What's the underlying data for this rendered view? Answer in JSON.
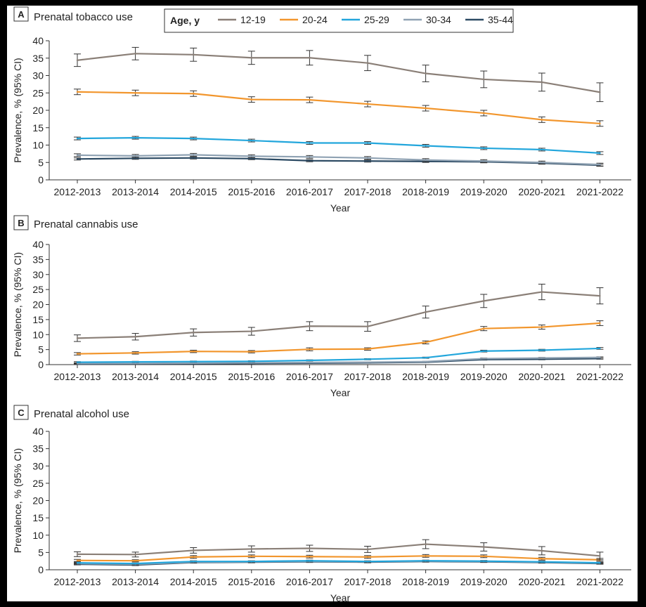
{
  "legend": {
    "title": "Age, y",
    "items": [
      {
        "label": "12-19",
        "color": "#8a7f77"
      },
      {
        "label": "20-24",
        "color": "#f2962d"
      },
      {
        "label": "25-29",
        "color": "#22a6dc"
      },
      {
        "label": "30-34",
        "color": "#8fa2b3"
      },
      {
        "label": "35-44",
        "color": "#2c4a63"
      }
    ]
  },
  "chart_data": [
    {
      "type": "line",
      "panel_letter": "A",
      "title": "Prenatal tobacco use",
      "xlabel": "Year",
      "ylabel": "Prevalence, % (95% CI)",
      "ylim": [
        0,
        40
      ],
      "yticks": [
        0,
        5,
        10,
        15,
        20,
        25,
        30,
        35,
        40
      ],
      "categories": [
        "2012-2013",
        "2013-2014",
        "2014-2015",
        "2015-2016",
        "2016-2017",
        "2017-2018",
        "2018-2019",
        "2019-2020",
        "2020-2021",
        "2021-2022"
      ],
      "grid": false,
      "error_bars": true,
      "series": [
        {
          "name": "12-19",
          "values": [
            34.4,
            36.3,
            36.0,
            35.1,
            35.1,
            33.6,
            30.6,
            28.9,
            28.1,
            25.2
          ],
          "lower": [
            32.6,
            34.5,
            34.1,
            33.2,
            33.0,
            31.4,
            28.2,
            26.5,
            25.5,
            22.5
          ],
          "upper": [
            36.2,
            38.1,
            37.9,
            37.0,
            37.2,
            35.8,
            33.0,
            31.3,
            30.7,
            27.9
          ]
        },
        {
          "name": "20-24",
          "values": [
            25.3,
            25.0,
            24.8,
            23.1,
            23.0,
            21.8,
            20.6,
            19.2,
            17.3,
            16.2
          ],
          "lower": [
            24.5,
            24.2,
            24.0,
            22.3,
            22.2,
            21.0,
            19.8,
            18.4,
            16.5,
            15.4
          ],
          "upper": [
            26.1,
            25.8,
            25.6,
            23.9,
            23.8,
            22.6,
            21.4,
            20.0,
            18.1,
            17.0
          ]
        },
        {
          "name": "25-29",
          "values": [
            11.9,
            12.1,
            11.9,
            11.3,
            10.6,
            10.6,
            9.8,
            9.1,
            8.7,
            7.7
          ],
          "lower": [
            11.5,
            11.7,
            11.5,
            10.9,
            10.2,
            10.2,
            9.4,
            8.7,
            8.3,
            7.3
          ],
          "upper": [
            12.3,
            12.5,
            12.3,
            11.7,
            11.0,
            11.0,
            10.2,
            9.5,
            9.1,
            8.1
          ]
        },
        {
          "name": "30-34",
          "values": [
            7.1,
            6.9,
            7.2,
            6.8,
            6.6,
            6.3,
            5.7,
            5.4,
            5.0,
            4.4
          ],
          "lower": [
            6.7,
            6.5,
            6.8,
            6.4,
            6.2,
            5.9,
            5.3,
            5.0,
            4.6,
            4.0
          ],
          "upper": [
            7.5,
            7.3,
            7.6,
            7.2,
            7.0,
            6.7,
            6.1,
            5.8,
            5.4,
            4.8
          ]
        },
        {
          "name": "35-44",
          "values": [
            6.0,
            6.2,
            6.3,
            6.1,
            5.5,
            5.4,
            5.3,
            5.2,
            4.8,
            4.2
          ],
          "lower": [
            5.7,
            5.9,
            6.0,
            5.8,
            5.2,
            5.1,
            5.0,
            4.9,
            4.5,
            3.9
          ],
          "upper": [
            6.3,
            6.5,
            6.6,
            6.4,
            5.8,
            5.7,
            5.6,
            5.5,
            5.1,
            4.5
          ]
        }
      ]
    },
    {
      "type": "line",
      "panel_letter": "B",
      "title": "Prenatal cannabis use",
      "xlabel": "Year",
      "ylabel": "Prevalence, % (95% CI)",
      "ylim": [
        0,
        40
      ],
      "yticks": [
        0,
        5,
        10,
        15,
        20,
        25,
        30,
        35,
        40
      ],
      "categories": [
        "2012-2013",
        "2013-2014",
        "2014-2015",
        "2015-2016",
        "2016-2017",
        "2017-2018",
        "2018-2019",
        "2019-2020",
        "2020-2021",
        "2021-2022"
      ],
      "grid": false,
      "error_bars": true,
      "series": [
        {
          "name": "12-19",
          "values": [
            8.8,
            9.3,
            10.7,
            11.1,
            12.8,
            12.7,
            17.5,
            21.2,
            24.2,
            22.9
          ],
          "lower": [
            7.7,
            8.2,
            9.5,
            9.8,
            11.3,
            11.1,
            15.5,
            19.0,
            21.6,
            20.2
          ],
          "upper": [
            9.9,
            10.4,
            11.9,
            12.4,
            14.3,
            14.3,
            19.5,
            23.4,
            26.8,
            25.6
          ]
        },
        {
          "name": "20-24",
          "values": [
            3.6,
            3.9,
            4.4,
            4.3,
            5.1,
            5.2,
            7.4,
            12.0,
            12.5,
            13.8
          ],
          "lower": [
            3.2,
            3.5,
            4.0,
            3.9,
            4.6,
            4.8,
            6.9,
            11.3,
            11.8,
            13.0
          ],
          "upper": [
            4.0,
            4.3,
            4.8,
            4.7,
            5.6,
            5.6,
            7.9,
            12.7,
            13.2,
            14.6
          ]
        },
        {
          "name": "25-29",
          "values": [
            0.8,
            0.9,
            1.0,
            1.1,
            1.4,
            1.8,
            2.3,
            4.5,
            4.8,
            5.4
          ],
          "lower": [
            0.6,
            0.7,
            0.8,
            0.9,
            1.2,
            1.6,
            2.1,
            4.2,
            4.5,
            5.1
          ],
          "upper": [
            1.0,
            1.1,
            1.2,
            1.3,
            1.6,
            2.0,
            2.5,
            4.8,
            5.1,
            5.7
          ]
        },
        {
          "name": "30-34",
          "values": [
            0.4,
            0.4,
            0.5,
            0.6,
            0.7,
            0.8,
            1.0,
            2.0,
            2.2,
            2.4
          ],
          "lower": [
            0.3,
            0.3,
            0.4,
            0.5,
            0.6,
            0.7,
            0.9,
            1.8,
            2.0,
            2.2
          ],
          "upper": [
            0.5,
            0.5,
            0.6,
            0.7,
            0.8,
            0.9,
            1.1,
            2.2,
            2.4,
            2.6
          ]
        },
        {
          "name": "35-44",
          "values": [
            0.2,
            0.3,
            0.3,
            0.4,
            0.5,
            0.6,
            0.8,
            1.7,
            1.8,
            2.0
          ],
          "lower": [
            0.1,
            0.2,
            0.2,
            0.3,
            0.4,
            0.5,
            0.7,
            1.5,
            1.6,
            1.8
          ],
          "upper": [
            0.3,
            0.4,
            0.4,
            0.5,
            0.6,
            0.7,
            0.9,
            1.9,
            2.0,
            2.2
          ]
        }
      ]
    },
    {
      "type": "line",
      "panel_letter": "C",
      "title": "Prenatal alcohol use",
      "xlabel": "Year",
      "ylabel": "Prevalence, % (95% CI)",
      "ylim": [
        0,
        40
      ],
      "yticks": [
        0,
        5,
        10,
        15,
        20,
        25,
        30,
        35,
        40
      ],
      "categories": [
        "2012-2013",
        "2013-2014",
        "2014-2015",
        "2015-2016",
        "2016-2017",
        "2017-2018",
        "2018-2019",
        "2019-2020",
        "2020-2021",
        "2021-2022"
      ],
      "grid": false,
      "error_bars": true,
      "series": [
        {
          "name": "12-19",
          "values": [
            4.5,
            4.4,
            5.6,
            6.0,
            6.2,
            5.9,
            7.4,
            6.6,
            5.5,
            4.0
          ],
          "lower": [
            3.8,
            3.7,
            4.8,
            5.1,
            5.3,
            5.0,
            6.1,
            5.4,
            4.3,
            2.9
          ],
          "upper": [
            5.2,
            5.1,
            6.4,
            6.9,
            7.1,
            6.8,
            8.7,
            7.8,
            6.7,
            5.1
          ]
        },
        {
          "name": "20-24",
          "values": [
            2.7,
            2.6,
            3.7,
            3.9,
            3.8,
            3.7,
            4.0,
            3.9,
            3.2,
            2.9
          ],
          "lower": [
            2.4,
            2.3,
            3.3,
            3.5,
            3.4,
            3.3,
            3.6,
            3.5,
            2.8,
            2.5
          ],
          "upper": [
            3.0,
            2.9,
            4.1,
            4.3,
            4.2,
            4.1,
            4.4,
            4.3,
            3.6,
            3.3
          ]
        },
        {
          "name": "25-29",
          "values": [
            2.0,
            1.8,
            2.4,
            2.4,
            2.6,
            2.4,
            2.6,
            2.5,
            2.3,
            2.0
          ],
          "lower": [
            1.8,
            1.6,
            2.2,
            2.2,
            2.4,
            2.2,
            2.4,
            2.3,
            2.1,
            1.8
          ],
          "upper": [
            2.2,
            2.0,
            2.6,
            2.6,
            2.8,
            2.6,
            2.8,
            2.7,
            2.5,
            2.2
          ]
        },
        {
          "name": "30-34",
          "values": [
            1.8,
            1.6,
            2.2,
            2.3,
            2.4,
            2.3,
            2.5,
            2.4,
            2.2,
            1.9
          ],
          "lower": [
            1.6,
            1.4,
            2.0,
            2.1,
            2.2,
            2.1,
            2.3,
            2.2,
            2.0,
            1.7
          ],
          "upper": [
            2.0,
            1.8,
            2.4,
            2.5,
            2.6,
            2.5,
            2.7,
            2.6,
            2.4,
            2.1
          ]
        },
        {
          "name": "35-44",
          "values": [
            1.6,
            1.4,
            2.1,
            2.2,
            2.3,
            2.2,
            2.4,
            2.3,
            2.1,
            1.8
          ],
          "lower": [
            1.4,
            1.2,
            1.9,
            2.0,
            2.1,
            2.0,
            2.2,
            2.1,
            1.9,
            1.6
          ],
          "upper": [
            1.8,
            1.6,
            2.3,
            2.4,
            2.5,
            2.4,
            2.6,
            2.5,
            2.3,
            2.0
          ]
        }
      ]
    }
  ]
}
